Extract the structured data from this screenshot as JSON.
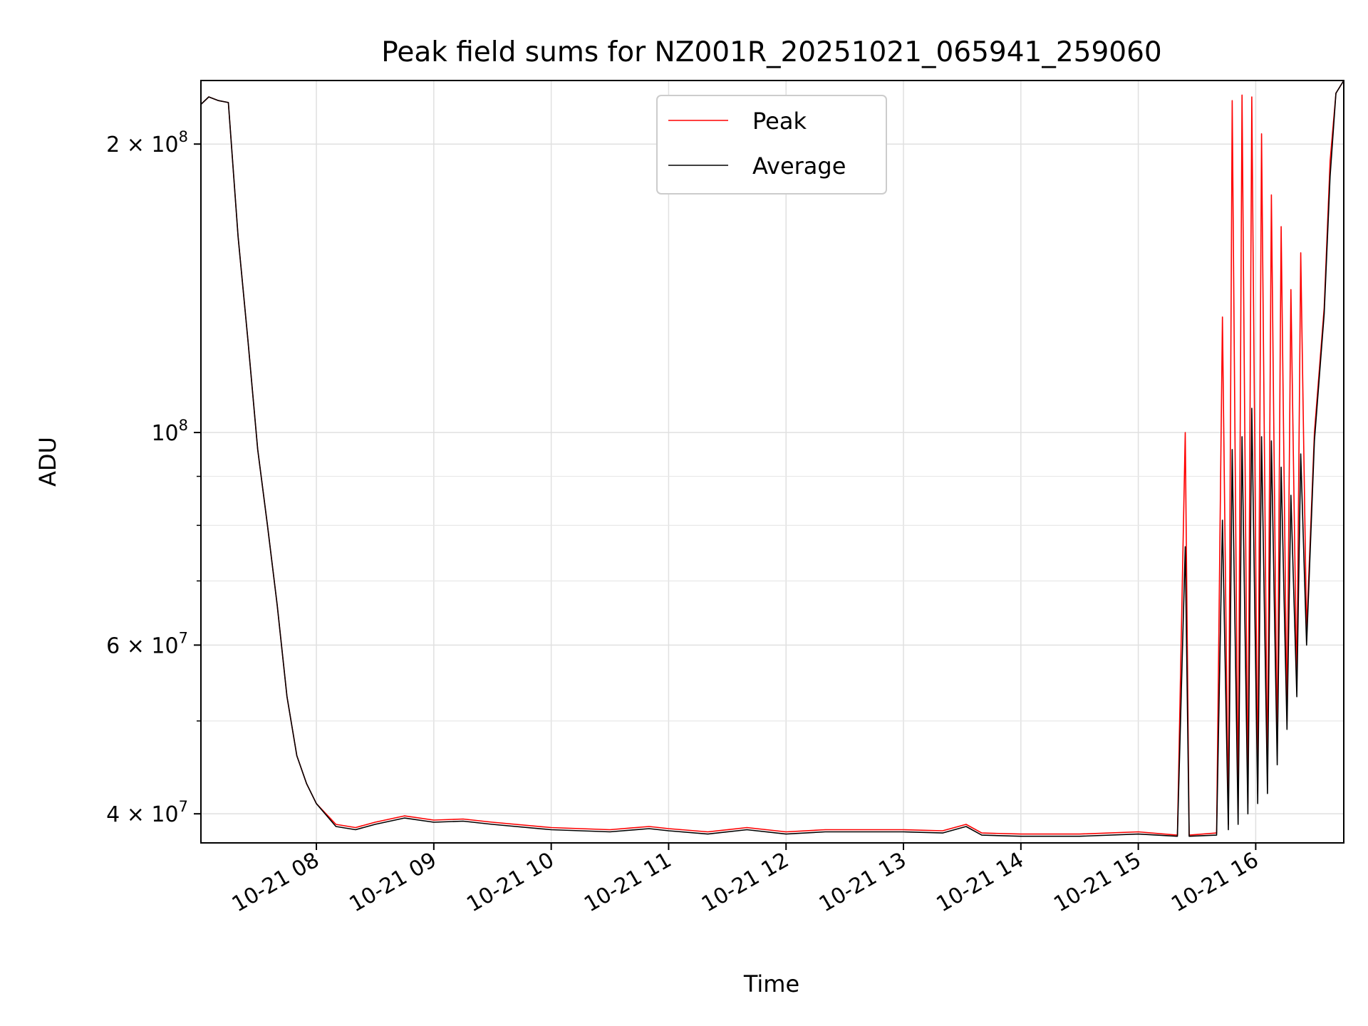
{
  "chart_data": {
    "type": "line",
    "title": "Peak field sums for NZ001R_20251021_065941_259060",
    "xlabel": "Time",
    "ylabel": "ADU",
    "yscale": "log",
    "xlim": [
      "10-21 07:01",
      "10-21 16:45"
    ],
    "ylim": [
      37300000,
      233000000
    ],
    "grid": true,
    "legend": "upper center",
    "x_ticks": [
      "10-21 08",
      "10-21 09",
      "10-21 10",
      "10-21 11",
      "10-21 12",
      "10-21 13",
      "10-21 14",
      "10-21 15",
      "10-21 16"
    ],
    "y_ticks": [
      {
        "value": 40000000,
        "base": "4 × 10",
        "exp": "7"
      },
      {
        "value": 60000000,
        "base": "6 × 10",
        "exp": "7"
      },
      {
        "value": 100000000,
        "base": "10",
        "exp": "8"
      },
      {
        "value": 200000000,
        "base": "2 × 10",
        "exp": "8"
      }
    ],
    "series": [
      {
        "name": "Peak",
        "color": "#ff0000",
        "points": [
          [
            "10-21 07:01",
            220000000
          ],
          [
            "10-21 07:05",
            224000000
          ],
          [
            "10-21 07:10",
            222000000
          ],
          [
            "10-21 07:15",
            221000000
          ],
          [
            "10-21 07:20",
            160000000
          ],
          [
            "10-21 07:25",
            125000000
          ],
          [
            "10-21 07:30",
            96000000
          ],
          [
            "10-21 07:35",
            80000000
          ],
          [
            "10-21 07:40",
            66000000
          ],
          [
            "10-21 07:45",
            53000000
          ],
          [
            "10-21 07:50",
            46000000
          ],
          [
            "10-21 07:55",
            43000000
          ],
          [
            "10-21 08:00",
            41000000
          ],
          [
            "10-21 08:10",
            39000000
          ],
          [
            "10-21 08:20",
            38700000
          ],
          [
            "10-21 08:30",
            39200000
          ],
          [
            "10-21 08:45",
            39800000
          ],
          [
            "10-21 09:00",
            39400000
          ],
          [
            "10-21 09:15",
            39500000
          ],
          [
            "10-21 09:30",
            39200000
          ],
          [
            "10-21 10:00",
            38700000
          ],
          [
            "10-21 10:30",
            38500000
          ],
          [
            "10-21 10:50",
            38800000
          ],
          [
            "10-21 11:00",
            38600000
          ],
          [
            "10-21 11:20",
            38300000
          ],
          [
            "10-21 11:40",
            38700000
          ],
          [
            "10-21 12:00",
            38300000
          ],
          [
            "10-21 12:20",
            38500000
          ],
          [
            "10-21 12:40",
            38500000
          ],
          [
            "10-21 13:00",
            38500000
          ],
          [
            "10-21 13:20",
            38400000
          ],
          [
            "10-21 13:32",
            39000000
          ],
          [
            "10-21 13:40",
            38200000
          ],
          [
            "10-21 14:00",
            38100000
          ],
          [
            "10-21 14:30",
            38100000
          ],
          [
            "10-21 15:00",
            38300000
          ],
          [
            "10-21 15:20",
            38000000
          ],
          [
            "10-21 15:24",
            100000000
          ],
          [
            "10-21 15:26",
            38000000
          ],
          [
            "10-21 15:40",
            38200000
          ],
          [
            "10-21 15:43",
            132000000
          ],
          [
            "10-21 15:46",
            39000000
          ],
          [
            "10-21 15:48",
            222000000
          ],
          [
            "10-21 15:51",
            40000000
          ],
          [
            "10-21 15:53",
            225000000
          ],
          [
            "10-21 15:56",
            41000000
          ],
          [
            "10-21 15:58",
            224000000
          ],
          [
            "10-21 16:01",
            42000000
          ],
          [
            "10-21 16:03",
            205000000
          ],
          [
            "10-21 16:06",
            43000000
          ],
          [
            "10-21 16:08",
            177000000
          ],
          [
            "10-21 16:11",
            46000000
          ],
          [
            "10-21 16:13",
            164000000
          ],
          [
            "10-21 16:16",
            50000000
          ],
          [
            "10-21 16:18",
            141000000
          ],
          [
            "10-21 16:21",
            54000000
          ],
          [
            "10-21 16:23",
            154000000
          ],
          [
            "10-21 16:26",
            62000000
          ],
          [
            "10-21 16:30",
            100000000
          ],
          [
            "10-21 16:35",
            135000000
          ],
          [
            "10-21 16:38",
            192000000
          ],
          [
            "10-21 16:41",
            226000000
          ],
          [
            "10-21 16:45",
            233000000
          ]
        ]
      },
      {
        "name": "Average",
        "color": "#000000",
        "points": [
          [
            "10-21 07:01",
            220000000
          ],
          [
            "10-21 07:05",
            224000000
          ],
          [
            "10-21 07:10",
            222000000
          ],
          [
            "10-21 07:15",
            221000000
          ],
          [
            "10-21 07:20",
            160000000
          ],
          [
            "10-21 07:25",
            125000000
          ],
          [
            "10-21 07:30",
            96000000
          ],
          [
            "10-21 07:35",
            80000000
          ],
          [
            "10-21 07:40",
            66000000
          ],
          [
            "10-21 07:45",
            53000000
          ],
          [
            "10-21 07:50",
            46000000
          ],
          [
            "10-21 07:55",
            43000000
          ],
          [
            "10-21 08:00",
            41000000
          ],
          [
            "10-21 08:10",
            38800000
          ],
          [
            "10-21 08:20",
            38500000
          ],
          [
            "10-21 08:30",
            39000000
          ],
          [
            "10-21 08:45",
            39600000
          ],
          [
            "10-21 09:00",
            39200000
          ],
          [
            "10-21 09:15",
            39300000
          ],
          [
            "10-21 09:30",
            39000000
          ],
          [
            "10-21 10:00",
            38500000
          ],
          [
            "10-21 10:30",
            38300000
          ],
          [
            "10-21 10:50",
            38600000
          ],
          [
            "10-21 11:00",
            38400000
          ],
          [
            "10-21 11:20",
            38100000
          ],
          [
            "10-21 11:40",
            38500000
          ],
          [
            "10-21 12:00",
            38100000
          ],
          [
            "10-21 12:20",
            38300000
          ],
          [
            "10-21 12:40",
            38300000
          ],
          [
            "10-21 13:00",
            38300000
          ],
          [
            "10-21 13:20",
            38200000
          ],
          [
            "10-21 13:32",
            38800000
          ],
          [
            "10-21 13:40",
            38000000
          ],
          [
            "10-21 14:00",
            37900000
          ],
          [
            "10-21 14:30",
            37900000
          ],
          [
            "10-21 15:00",
            38100000
          ],
          [
            "10-21 15:20",
            37900000
          ],
          [
            "10-21 15:24",
            76000000
          ],
          [
            "10-21 15:26",
            37900000
          ],
          [
            "10-21 15:40",
            38000000
          ],
          [
            "10-21 15:43",
            81000000
          ],
          [
            "10-21 15:46",
            38500000
          ],
          [
            "10-21 15:48",
            96000000
          ],
          [
            "10-21 15:51",
            39000000
          ],
          [
            "10-21 15:53",
            99000000
          ],
          [
            "10-21 15:56",
            40000000
          ],
          [
            "10-21 15:58",
            106000000
          ],
          [
            "10-21 16:01",
            41000000
          ],
          [
            "10-21 16:03",
            99000000
          ],
          [
            "10-21 16:06",
            42000000
          ],
          [
            "10-21 16:08",
            98000000
          ],
          [
            "10-21 16:11",
            45000000
          ],
          [
            "10-21 16:13",
            92000000
          ],
          [
            "10-21 16:16",
            49000000
          ],
          [
            "10-21 16:18",
            86000000
          ],
          [
            "10-21 16:21",
            53000000
          ],
          [
            "10-21 16:23",
            95000000
          ],
          [
            "10-21 16:26",
            60000000
          ],
          [
            "10-21 16:30",
            98000000
          ],
          [
            "10-21 16:35",
            133000000
          ],
          [
            "10-21 16:38",
            185000000
          ],
          [
            "10-21 16:41",
            226000000
          ],
          [
            "10-21 16:45",
            233000000
          ]
        ]
      }
    ]
  }
}
